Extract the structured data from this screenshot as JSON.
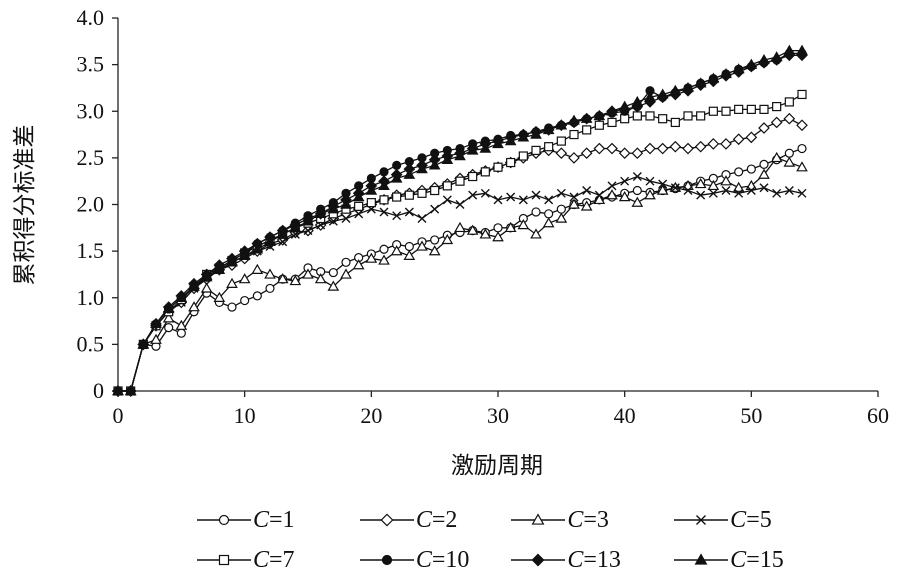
{
  "chart_data": {
    "type": "line",
    "xlabel": "激励周期",
    "ylabel": "累积得分标准差",
    "xlim": [
      0,
      60
    ],
    "ylim": [
      0,
      4.0
    ],
    "xticks": [
      "0",
      "10",
      "20",
      "30",
      "40",
      "50",
      "60"
    ],
    "yticks": [
      "0",
      "0.5",
      "1.0",
      "1.5",
      "2.0",
      "2.5",
      "3.0",
      "3.5",
      "4.0"
    ],
    "grid": false,
    "legend_position": "bottom",
    "series": [
      {
        "name": "C=1",
        "var": "C",
        "val": "=1",
        "marker": "circle-open",
        "x": [
          0,
          1,
          2,
          3,
          4,
          5,
          6,
          7,
          8,
          9,
          10,
          11,
          12,
          13,
          14,
          15,
          16,
          17,
          18,
          19,
          20,
          21,
          22,
          23,
          24,
          25,
          26,
          27,
          28,
          29,
          30,
          31,
          32,
          33,
          34,
          35,
          36,
          37,
          38,
          39,
          40,
          41,
          42,
          43,
          44,
          45,
          46,
          47,
          48,
          49,
          50,
          51,
          52,
          53,
          54
        ],
        "y": [
          0,
          0,
          0.5,
          0.48,
          0.68,
          0.62,
          0.85,
          1.05,
          0.95,
          0.9,
          0.97,
          1.02,
          1.1,
          1.2,
          1.2,
          1.32,
          1.28,
          1.27,
          1.38,
          1.43,
          1.47,
          1.52,
          1.57,
          1.55,
          1.6,
          1.62,
          1.67,
          1.7,
          1.72,
          1.7,
          1.75,
          1.75,
          1.85,
          1.92,
          1.9,
          1.95,
          2.0,
          2.02,
          2.05,
          2.08,
          2.12,
          2.15,
          2.13,
          2.15,
          2.17,
          2.2,
          2.25,
          2.28,
          2.32,
          2.35,
          2.38,
          2.43,
          2.48,
          2.55,
          2.6
        ]
      },
      {
        "name": "C=2",
        "var": "C",
        "val": "=2",
        "marker": "diamond-open",
        "x": [
          0,
          1,
          2,
          3,
          4,
          5,
          6,
          7,
          8,
          9,
          10,
          11,
          12,
          13,
          14,
          15,
          16,
          17,
          18,
          19,
          20,
          21,
          22,
          23,
          24,
          25,
          26,
          27,
          28,
          29,
          30,
          31,
          32,
          33,
          34,
          35,
          36,
          37,
          38,
          39,
          40,
          41,
          42,
          43,
          44,
          45,
          46,
          47,
          48,
          49,
          50,
          51,
          52,
          53,
          54
        ],
        "y": [
          0,
          0,
          0.5,
          0.7,
          0.85,
          0.95,
          1.1,
          1.2,
          1.3,
          1.35,
          1.42,
          1.5,
          1.58,
          1.62,
          1.7,
          1.72,
          1.78,
          1.85,
          1.9,
          1.95,
          2.0,
          2.05,
          2.1,
          2.12,
          2.15,
          2.18,
          2.22,
          2.28,
          2.32,
          2.36,
          2.4,
          2.45,
          2.5,
          2.55,
          2.58,
          2.55,
          2.5,
          2.55,
          2.6,
          2.6,
          2.55,
          2.55,
          2.6,
          2.6,
          2.62,
          2.6,
          2.62,
          2.65,
          2.65,
          2.7,
          2.72,
          2.82,
          2.88,
          2.92,
          2.85
        ]
      },
      {
        "name": "C=3",
        "var": "C",
        "val": "=3",
        "marker": "triangle-open",
        "x": [
          0,
          1,
          2,
          3,
          4,
          5,
          6,
          7,
          8,
          9,
          10,
          11,
          12,
          13,
          14,
          15,
          16,
          17,
          18,
          19,
          20,
          21,
          22,
          23,
          24,
          25,
          26,
          27,
          28,
          29,
          30,
          31,
          32,
          33,
          34,
          35,
          36,
          37,
          38,
          39,
          40,
          41,
          42,
          43,
          44,
          45,
          46,
          47,
          48,
          49,
          50,
          51,
          52,
          53,
          54
        ],
        "y": [
          0,
          0,
          0.5,
          0.55,
          0.78,
          0.7,
          0.9,
          1.1,
          1.0,
          1.15,
          1.2,
          1.3,
          1.25,
          1.2,
          1.18,
          1.25,
          1.2,
          1.12,
          1.25,
          1.35,
          1.42,
          1.4,
          1.5,
          1.45,
          1.55,
          1.5,
          1.62,
          1.75,
          1.72,
          1.68,
          1.65,
          1.75,
          1.78,
          1.68,
          1.8,
          1.85,
          2.0,
          1.98,
          2.05,
          2.1,
          2.08,
          2.02,
          2.1,
          2.15,
          2.18,
          2.2,
          2.22,
          2.2,
          2.25,
          2.18,
          2.2,
          2.32,
          2.5,
          2.45,
          2.4
        ]
      },
      {
        "name": "C=5",
        "var": "C",
        "val": "=5",
        "marker": "x",
        "x": [
          0,
          1,
          2,
          3,
          4,
          5,
          6,
          7,
          8,
          9,
          10,
          11,
          12,
          13,
          14,
          15,
          16,
          17,
          18,
          19,
          20,
          21,
          22,
          23,
          24,
          25,
          26,
          27,
          28,
          29,
          30,
          31,
          32,
          33,
          34,
          35,
          36,
          37,
          38,
          39,
          40,
          41,
          42,
          43,
          44,
          45,
          46,
          47,
          48,
          49,
          50,
          51,
          52,
          53,
          54
        ],
        "y": [
          0,
          0,
          0.5,
          0.7,
          0.85,
          0.95,
          1.1,
          1.22,
          1.3,
          1.38,
          1.45,
          1.5,
          1.55,
          1.6,
          1.68,
          1.72,
          1.78,
          1.82,
          1.85,
          1.9,
          1.95,
          1.92,
          1.88,
          1.92,
          1.85,
          1.95,
          2.05,
          2.0,
          2.1,
          2.12,
          2.05,
          2.08,
          2.05,
          2.1,
          2.05,
          2.12,
          2.08,
          2.15,
          2.1,
          2.2,
          2.25,
          2.3,
          2.25,
          2.22,
          2.18,
          2.15,
          2.1,
          2.12,
          2.15,
          2.12,
          2.15,
          2.18,
          2.12,
          2.15,
          2.12
        ]
      },
      {
        "name": "C=7",
        "var": "C",
        "val": "=7",
        "marker": "square-open",
        "x": [
          0,
          1,
          2,
          3,
          4,
          5,
          6,
          7,
          8,
          9,
          10,
          11,
          12,
          13,
          14,
          15,
          16,
          17,
          18,
          19,
          20,
          21,
          22,
          23,
          24,
          25,
          26,
          27,
          28,
          29,
          30,
          31,
          32,
          33,
          34,
          35,
          36,
          37,
          38,
          39,
          40,
          41,
          42,
          43,
          44,
          45,
          46,
          47,
          48,
          49,
          50,
          51,
          52,
          53,
          54
        ],
        "y": [
          0,
          0,
          0.5,
          0.7,
          0.85,
          0.98,
          1.12,
          1.25,
          1.32,
          1.4,
          1.48,
          1.55,
          1.62,
          1.68,
          1.75,
          1.8,
          1.85,
          1.9,
          1.95,
          1.98,
          2.02,
          2.05,
          2.08,
          2.1,
          2.12,
          2.15,
          2.2,
          2.25,
          2.3,
          2.35,
          2.4,
          2.45,
          2.52,
          2.58,
          2.62,
          2.68,
          2.75,
          2.8,
          2.85,
          2.88,
          2.92,
          2.95,
          2.95,
          2.92,
          2.88,
          2.95,
          2.95,
          3.0,
          3.0,
          3.02,
          3.02,
          3.02,
          3.05,
          3.1,
          3.18
        ]
      },
      {
        "name": "C=10",
        "var": "C",
        "val": "=10",
        "marker": "circle",
        "x": [
          0,
          1,
          2,
          3,
          4,
          5,
          6,
          7,
          8,
          9,
          10,
          11,
          12,
          13,
          14,
          15,
          16,
          17,
          18,
          19,
          20,
          21,
          22,
          23,
          24,
          25,
          26,
          27,
          28,
          29,
          30,
          31,
          32,
          33,
          34,
          35,
          36,
          37,
          38,
          39,
          40,
          41,
          42,
          43,
          44,
          45,
          46,
          47,
          48,
          49,
          50,
          51,
          52,
          53,
          54
        ],
        "y": [
          0,
          0,
          0.5,
          0.72,
          0.88,
          1.0,
          1.12,
          1.22,
          1.32,
          1.4,
          1.48,
          1.58,
          1.65,
          1.72,
          1.8,
          1.88,
          1.95,
          2.02,
          2.12,
          2.2,
          2.28,
          2.35,
          2.42,
          2.46,
          2.5,
          2.55,
          2.58,
          2.6,
          2.65,
          2.68,
          2.7,
          2.74,
          2.75,
          2.78,
          2.82,
          2.85,
          2.88,
          2.92,
          2.95,
          2.98,
          3.0,
          3.05,
          3.22,
          3.15,
          3.2,
          3.25,
          3.3,
          3.35,
          3.4,
          3.45,
          3.48,
          3.52,
          3.55,
          3.62,
          3.62
        ]
      },
      {
        "name": "C=13",
        "var": "C",
        "val": "=13",
        "marker": "diamond",
        "x": [
          0,
          1,
          2,
          3,
          4,
          5,
          6,
          7,
          8,
          9,
          10,
          11,
          12,
          13,
          14,
          15,
          16,
          17,
          18,
          19,
          20,
          21,
          22,
          23,
          24,
          25,
          26,
          27,
          28,
          29,
          30,
          31,
          32,
          33,
          34,
          35,
          36,
          37,
          38,
          39,
          40,
          41,
          42,
          43,
          44,
          45,
          46,
          47,
          48,
          49,
          50,
          51,
          52,
          53,
          54
        ],
        "y": [
          0,
          0,
          0.5,
          0.72,
          0.9,
          1.02,
          1.15,
          1.25,
          1.35,
          1.42,
          1.5,
          1.58,
          1.65,
          1.72,
          1.78,
          1.85,
          1.9,
          1.98,
          2.05,
          2.12,
          2.2,
          2.25,
          2.32,
          2.38,
          2.42,
          2.48,
          2.52,
          2.55,
          2.6,
          2.65,
          2.68,
          2.72,
          2.75,
          2.78,
          2.8,
          2.85,
          2.88,
          2.92,
          2.95,
          3.0,
          3.02,
          3.05,
          3.1,
          3.15,
          3.18,
          3.22,
          3.28,
          3.32,
          3.38,
          3.42,
          3.48,
          3.52,
          3.55,
          3.6,
          3.6
        ]
      },
      {
        "name": "C=15",
        "var": "C",
        "val": "=15",
        "marker": "triangle",
        "x": [
          0,
          1,
          2,
          3,
          4,
          5,
          6,
          7,
          8,
          9,
          10,
          11,
          12,
          13,
          14,
          15,
          16,
          17,
          18,
          19,
          20,
          21,
          22,
          23,
          24,
          25,
          26,
          27,
          28,
          29,
          30,
          31,
          32,
          33,
          34,
          35,
          36,
          37,
          38,
          39,
          40,
          41,
          42,
          43,
          44,
          45,
          46,
          47,
          48,
          49,
          50,
          51,
          52,
          53,
          54
        ],
        "y": [
          0,
          0,
          0.5,
          0.72,
          0.88,
          1.0,
          1.12,
          1.22,
          1.3,
          1.38,
          1.45,
          1.52,
          1.6,
          1.68,
          1.75,
          1.82,
          1.9,
          1.95,
          2.0,
          2.08,
          2.15,
          2.2,
          2.28,
          2.32,
          2.38,
          2.42,
          2.48,
          2.52,
          2.58,
          2.6,
          2.65,
          2.68,
          2.72,
          2.75,
          2.8,
          2.85,
          2.9,
          2.92,
          2.95,
          3.0,
          3.05,
          3.1,
          3.15,
          3.18,
          3.22,
          3.25,
          3.3,
          3.35,
          3.4,
          3.45,
          3.5,
          3.55,
          3.58,
          3.65,
          3.65
        ]
      }
    ]
  }
}
